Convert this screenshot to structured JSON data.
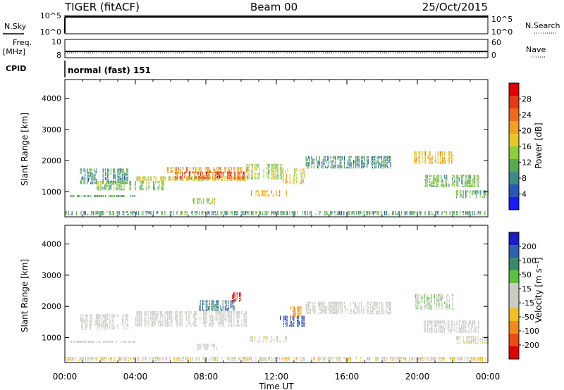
{
  "header": {
    "radar": "TIGER (fitACF)",
    "beam": "Beam 00",
    "date": "25/Oct/2015"
  },
  "strips": {
    "nsky": {
      "label": "N.Sky",
      "ticks": [
        "10^5",
        "10^0"
      ]
    },
    "nsearch": {
      "label": "N.Search",
      "ticks": [
        "10^5",
        "10^0"
      ]
    },
    "freq": {
      "label_line1": "Freq.",
      "label_line2": "[MHz]",
      "ticks": [
        "10",
        "8"
      ]
    },
    "nave": {
      "label": "Nave",
      "ticks": [
        "60",
        "0"
      ]
    },
    "cpid": {
      "label": "CPID",
      "value": "normal (fast) 151"
    }
  },
  "chart_data": [
    {
      "type": "heatmap",
      "name": "power",
      "xlabel": "",
      "ylabel": "Slant Range [km]",
      "x_range_hours": [
        0,
        24
      ],
      "ylim": [
        200,
        4600
      ],
      "yticks": [
        "1000",
        "2000",
        "3000",
        "4000"
      ],
      "colorbar": {
        "label": "Power [dB]",
        "ticks": [
          "4",
          "8",
          "12",
          "16",
          "20",
          "24",
          "28"
        ],
        "colors": [
          "#1a1aff",
          "#2a57b8",
          "#3f8a86",
          "#58a84f",
          "#8ccf3a",
          "#e9c628",
          "#f3a01f",
          "#ee6a1a",
          "#e53a14",
          "#e00000"
        ]
      },
      "echo_bands": [
        {
          "start_h": 0.3,
          "end_h": 4.0,
          "range_km": [
            830,
            900
          ],
          "value": 10
        },
        {
          "start_h": 0.8,
          "end_h": 3.6,
          "range_km": [
            1250,
            1750
          ],
          "value": 9
        },
        {
          "start_h": 1.8,
          "end_h": 5.6,
          "range_km": [
            1050,
            1350
          ],
          "value": 13
        },
        {
          "start_h": 4.0,
          "end_h": 10.3,
          "range_km": [
            1350,
            1500
          ],
          "value": 17
        },
        {
          "start_h": 5.6,
          "end_h": 10.3,
          "range_km": [
            1600,
            1800
          ],
          "value": 21
        },
        {
          "start_h": 6.2,
          "end_h": 10.2,
          "range_km": [
            1400,
            1650
          ],
          "value": 26
        },
        {
          "start_h": 7.2,
          "end_h": 8.6,
          "range_km": [
            600,
            800
          ],
          "value": 14
        },
        {
          "start_h": 10.5,
          "end_h": 12.6,
          "range_km": [
            850,
            1050
          ],
          "value": 20
        },
        {
          "start_h": 10.3,
          "end_h": 12.3,
          "range_km": [
            1400,
            1900
          ],
          "value": 15
        },
        {
          "start_h": 12.3,
          "end_h": 13.6,
          "range_km": [
            1250,
            1750
          ],
          "value": 18
        },
        {
          "start_h": 13.6,
          "end_h": 18.5,
          "range_km": [
            1750,
            2150
          ],
          "value": 9
        },
        {
          "start_h": 19.8,
          "end_h": 22.0,
          "range_km": [
            1900,
            2300
          ],
          "value": 19
        },
        {
          "start_h": 20.3,
          "end_h": 23.5,
          "range_km": [
            1150,
            1550
          ],
          "value": 12
        },
        {
          "start_h": 22.2,
          "end_h": 24.0,
          "range_km": [
            800,
            1050
          ],
          "value": 11
        },
        {
          "start_h": 0.0,
          "end_h": 24.0,
          "range_km": [
            250,
            380
          ],
          "value": 10
        }
      ]
    },
    {
      "type": "heatmap",
      "name": "velocity",
      "xlabel": "Time UT",
      "ylabel": "Slant Range [km]",
      "x_range_hours": [
        0,
        24
      ],
      "xticks": [
        "00:00",
        "04:00",
        "08:00",
        "12:00",
        "16:00",
        "20:00",
        "00:00"
      ],
      "ylim": [
        200,
        4600
      ],
      "yticks": [
        "1000",
        "2000",
        "3000",
        "4000"
      ],
      "colorbar": {
        "label": "Velocity [m s⁻¹]",
        "ticks": [
          "200",
          "100",
          "50",
          "15",
          "-15",
          "-50",
          "-100",
          "-200"
        ],
        "colors": [
          "#1a1ac8",
          "#2f5fb0",
          "#3a8a6a",
          "#5cc041",
          "#cbcbc5",
          "#cbcbc5",
          "#f0c020",
          "#f08a1a",
          "#ee4a14",
          "#e00000"
        ]
      },
      "echo_bands": [
        {
          "start_h": 0.3,
          "end_h": 4.0,
          "range_km": [
            830,
            900
          ],
          "value": 0
        },
        {
          "start_h": 0.8,
          "end_h": 3.6,
          "range_km": [
            1250,
            1750
          ],
          "value": 0
        },
        {
          "start_h": 4.0,
          "end_h": 10.3,
          "range_km": [
            1350,
            1850
          ],
          "value": 0
        },
        {
          "start_h": 7.6,
          "end_h": 9.6,
          "range_km": [
            1850,
            2200
          ],
          "value": 120
        },
        {
          "start_h": 9.3,
          "end_h": 10.0,
          "range_km": [
            2150,
            2450
          ],
          "value": -180
        },
        {
          "start_h": 7.5,
          "end_h": 8.6,
          "range_km": [
            600,
            800
          ],
          "value": 0
        },
        {
          "start_h": 10.5,
          "end_h": 12.6,
          "range_km": [
            850,
            1050
          ],
          "value": -30
        },
        {
          "start_h": 12.2,
          "end_h": 13.6,
          "range_km": [
            1350,
            1700
          ],
          "value": 150
        },
        {
          "start_h": 12.8,
          "end_h": 13.5,
          "range_km": [
            1650,
            2000
          ],
          "value": -90
        },
        {
          "start_h": 13.6,
          "end_h": 18.5,
          "range_km": [
            1750,
            2150
          ],
          "value": 0
        },
        {
          "start_h": 19.8,
          "end_h": 22.0,
          "range_km": [
            1900,
            2400
          ],
          "value": 30
        },
        {
          "start_h": 20.3,
          "end_h": 23.5,
          "range_km": [
            1150,
            1550
          ],
          "value": 0
        },
        {
          "start_h": 22.2,
          "end_h": 24.0,
          "range_km": [
            800,
            1050
          ],
          "value": -30
        },
        {
          "start_h": 0.0,
          "end_h": 24.0,
          "range_km": [
            250,
            380
          ],
          "value": -30
        }
      ]
    }
  ]
}
